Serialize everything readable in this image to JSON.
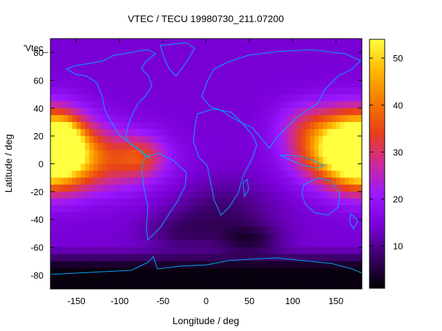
{
  "chart_data": {
    "type": "heatmap",
    "title": "VTEC / TECU 19980730_211.07200",
    "xlabel": "Longitude / deg",
    "ylabel": "Latitude / deg",
    "overlay_label": "'Vtec_",
    "xlim": [
      -180,
      180
    ],
    "ylim": [
      -90,
      90
    ],
    "xticks": [
      -150,
      -100,
      -50,
      0,
      50,
      100,
      150
    ],
    "yticks": [
      -80,
      -60,
      -40,
      -20,
      0,
      20,
      40,
      60,
      80
    ],
    "colorbar": {
      "range": [
        1,
        54
      ],
      "ticks": [
        10,
        20,
        30,
        40,
        50
      ],
      "colormap": [
        "#000000",
        "#3a0066",
        "#7a00d8",
        "#9a18ff",
        "#cc2a99",
        "#e8401a",
        "#f57a00",
        "#ffb800",
        "#ffff40"
      ]
    },
    "grid_step_deg": 5,
    "features": {
      "background_vtec": 14,
      "blobs": [
        {
          "lon": -175,
          "lat": 10,
          "peak": 32,
          "sigma_lon": 30,
          "sigma_lat": 18
        },
        {
          "lon": -165,
          "lat": 16,
          "peak": 18,
          "sigma_lon": 12,
          "sigma_lat": 10
        },
        {
          "lon": -120,
          "lat": 2,
          "peak": 17,
          "sigma_lon": 45,
          "sigma_lat": 16
        },
        {
          "lon": -75,
          "lat": 5,
          "peak": 12,
          "sigma_lon": 20,
          "sigma_lat": 10
        },
        {
          "lon": 170,
          "lat": 10,
          "peak": 30,
          "sigma_lon": 30,
          "sigma_lat": 18
        },
        {
          "lon": 175,
          "lat": 0,
          "peak": 14,
          "sigma_lon": 8,
          "sigma_lat": 6
        },
        {
          "lon": 130,
          "lat": 10,
          "peak": 15,
          "sigma_lon": 30,
          "sigma_lat": 16
        },
        {
          "lon": 115,
          "lat": 30,
          "peak": 8,
          "sigma_lon": 25,
          "sigma_lat": 12
        },
        {
          "lon": 20,
          "lat": -35,
          "peak": -6,
          "sigma_lon": 40,
          "sigma_lat": 15
        },
        {
          "lon": 50,
          "lat": -55,
          "peak": -8,
          "sigma_lon": 25,
          "sigma_lat": 8
        },
        {
          "lon": -30,
          "lat": -50,
          "peak": -5,
          "sigma_lon": 30,
          "sigma_lat": 10
        }
      ],
      "polar_south": {
        "lat_start": -60,
        "min_vtec": 2
      }
    }
  }
}
